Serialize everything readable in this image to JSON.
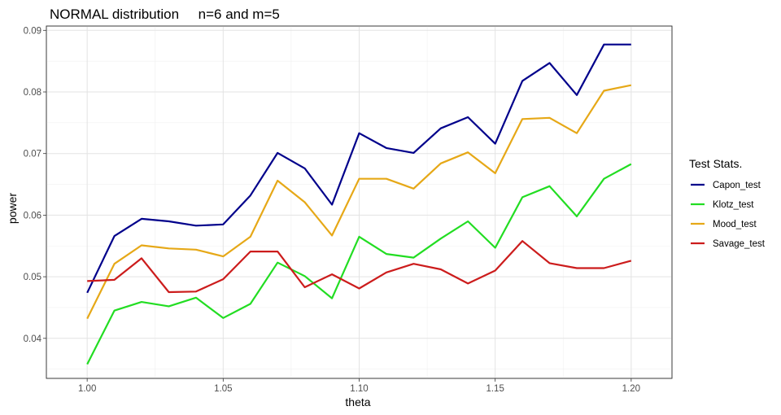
{
  "chart_data": {
    "type": "line",
    "title": "NORMAL distribution     n=6 and m=5",
    "xlabel": "theta",
    "ylabel": "power",
    "xlim": [
      0.985,
      1.215
    ],
    "ylim": [
      0.0335,
      0.0907
    ],
    "xticks": [
      1.0,
      1.05,
      1.1,
      1.15,
      1.2
    ],
    "xtick_labels": [
      "1.00",
      "1.05",
      "1.10",
      "1.15",
      "1.20"
    ],
    "yticks": [
      0.04,
      0.05,
      0.06,
      0.07,
      0.08,
      0.09
    ],
    "ytick_labels": [
      "0.04",
      "0.05",
      "0.06",
      "0.07",
      "0.08",
      "0.09"
    ],
    "grid": true,
    "legend_title": "Test Stats.",
    "legend_position": "right",
    "x": [
      1.0,
      1.01,
      1.02,
      1.03,
      1.04,
      1.05,
      1.06,
      1.07,
      1.08,
      1.09,
      1.1,
      1.11,
      1.12,
      1.13,
      1.14,
      1.15,
      1.16,
      1.17,
      1.18,
      1.19,
      1.2
    ],
    "series": [
      {
        "name": "Capon_test",
        "color": "#00008B",
        "values": [
          0.0474,
          0.0566,
          0.0594,
          0.059,
          0.0583,
          0.0585,
          0.0632,
          0.0701,
          0.0676,
          0.0617,
          0.0733,
          0.0709,
          0.0701,
          0.0741,
          0.0759,
          0.0716,
          0.0818,
          0.0847,
          0.0795,
          0.0877,
          0.0877
        ]
      },
      {
        "name": "Klotz_test",
        "color": "#22DD22",
        "values": [
          0.0358,
          0.0445,
          0.0459,
          0.0452,
          0.0466,
          0.0433,
          0.0456,
          0.0523,
          0.0501,
          0.0465,
          0.0565,
          0.0537,
          0.0531,
          0.0562,
          0.059,
          0.0547,
          0.0629,
          0.0647,
          0.0598,
          0.0659,
          0.0683
        ]
      },
      {
        "name": "Mood_test",
        "color": "#E6A817",
        "values": [
          0.0432,
          0.0521,
          0.0551,
          0.0546,
          0.0544,
          0.0533,
          0.0565,
          0.0656,
          0.0621,
          0.0567,
          0.0659,
          0.0659,
          0.0643,
          0.0684,
          0.0702,
          0.0668,
          0.0756,
          0.0758,
          0.0733,
          0.0802,
          0.0811
        ]
      },
      {
        "name": "Savage_test",
        "color": "#CC1C1C",
        "values": [
          0.0493,
          0.0495,
          0.053,
          0.0475,
          0.0476,
          0.0496,
          0.0541,
          0.0541,
          0.0483,
          0.0504,
          0.0481,
          0.0507,
          0.0521,
          0.0512,
          0.0489,
          0.051,
          0.0558,
          0.0522,
          0.0514,
          0.0514,
          0.0526
        ]
      }
    ]
  }
}
